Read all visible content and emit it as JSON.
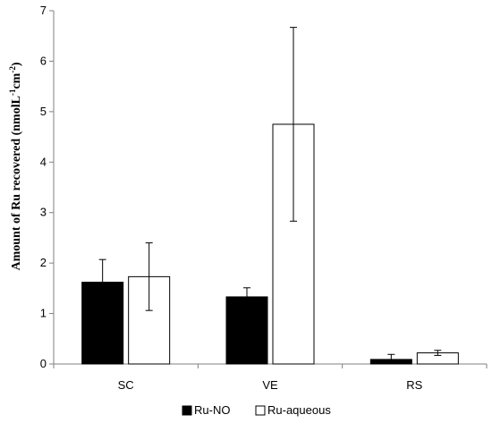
{
  "chart_data": {
    "type": "bar",
    "categories": [
      "SC",
      "VE",
      "RS"
    ],
    "series": [
      {
        "name": "Ru-NO",
        "values": [
          1.62,
          1.33,
          0.09
        ],
        "errors": [
          0.45,
          0.18,
          0.1
        ],
        "color": "#000000"
      },
      {
        "name": "Ru-aqueous",
        "values": [
          1.73,
          4.75,
          0.22
        ],
        "errors": [
          0.67,
          1.92,
          0.05
        ],
        "color": "#ffffff"
      }
    ],
    "y_ticks": [
      "0",
      "1",
      "2",
      "3",
      "4",
      "5",
      "6",
      "7"
    ],
    "ylim": [
      0,
      7
    ],
    "ylabel_main": "Amount of Ru recovered (nmolL",
    "ylabel_sup1": "-1",
    "ylabel_mid": "cm",
    "ylabel_sup2": "-2",
    "ylabel_end": ")",
    "legend_position": "bottom-center",
    "grid": false
  }
}
